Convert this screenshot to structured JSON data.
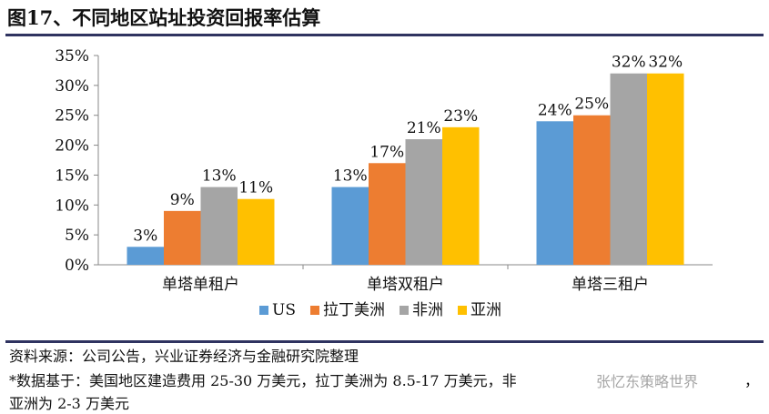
{
  "title": "图17、不同地区站址投资回报率估算",
  "chart_data": {
    "type": "bar",
    "categories": [
      "单塔单租户",
      "单塔双租户",
      "单塔三租户"
    ],
    "series": [
      {
        "name": "US",
        "color": "#5b9bd5",
        "values": [
          3,
          13,
          24
        ]
      },
      {
        "name": "拉丁美洲",
        "color": "#ed7d31",
        "values": [
          9,
          17,
          25
        ]
      },
      {
        "name": "非洲",
        "color": "#a5a5a5",
        "values": [
          13,
          21,
          32
        ]
      },
      {
        "name": "亚洲",
        "color": "#ffc000",
        "values": [
          11,
          23,
          32
        ]
      }
    ],
    "ylim": [
      0,
      35
    ],
    "yticks": [
      "0%",
      "5%",
      "10%",
      "15%",
      "20%",
      "25%",
      "30%",
      "35%"
    ],
    "value_suffix": "%",
    "legend": "bottom"
  },
  "footer": {
    "source": "资料来源：公司公告，兴业证券经济与金融研究院整理",
    "note_line1": "*数据基于：美国地区建造费用 25-30 万美元，拉丁美洲为 8.5-17 万美元，非",
    "note_line1_end": "，",
    "note_line2": "亚洲为 2-3 万美元",
    "watermark": "张忆东策略世界"
  }
}
